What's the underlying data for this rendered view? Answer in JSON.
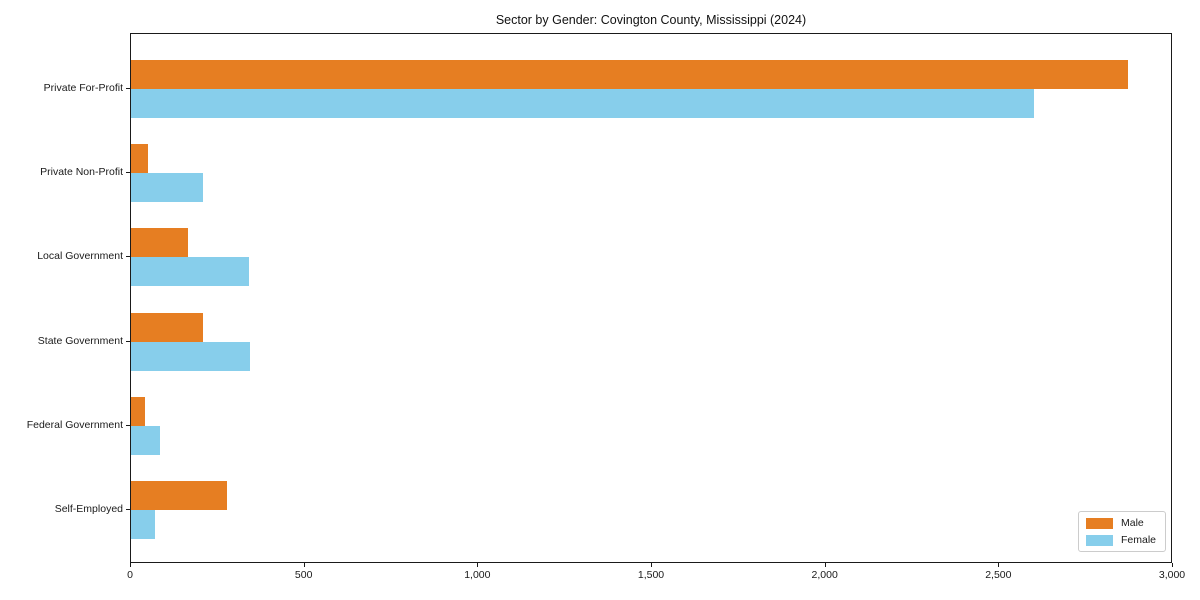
{
  "chart_data": {
    "type": "bar",
    "orientation": "horizontal",
    "title": "Sector by Gender: Covington County, Mississippi (2024)",
    "categories": [
      "Private For-Profit",
      "Private Non-Profit",
      "Local Government",
      "State Government",
      "Federal Government",
      "Self-Employed"
    ],
    "series": [
      {
        "name": "Male",
        "color": "#e67e22",
        "values": [
          2870,
          50,
          165,
          207,
          41,
          277
        ]
      },
      {
        "name": "Female",
        "color": "#87ceeb",
        "values": [
          2600,
          208,
          341,
          344,
          83,
          69
        ]
      }
    ],
    "xlabel": "",
    "ylabel": "",
    "xlim": [
      0,
      3000
    ],
    "xticks": [
      0,
      500,
      1000,
      1500,
      2000,
      2500,
      3000
    ],
    "xtick_labels": [
      "0",
      "500",
      "1,000",
      "1,500",
      "2,000",
      "2,500",
      "3,000"
    ],
    "grid": false,
    "legend_position": "lower right",
    "frame": "full-box",
    "colors": {
      "spine": "#1a1a1a",
      "background": "#ffffff"
    }
  }
}
